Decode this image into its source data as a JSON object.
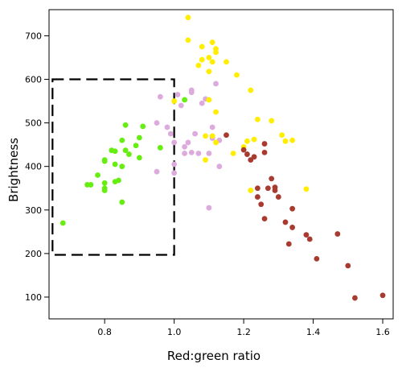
{
  "chart_data": {
    "type": "scatter",
    "title": "",
    "xlabel": "Red:green ratio",
    "ylabel": "Brightness",
    "xlim": [
      0.64,
      1.63
    ],
    "ylim": [
      50,
      760
    ],
    "x_ticks": [
      0.8,
      1.0,
      1.2,
      1.4,
      1.6
    ],
    "y_ticks": [
      100,
      200,
      300,
      400,
      500,
      600,
      700
    ],
    "x_tick_labels": [
      "0.8",
      "1.0",
      "1.2",
      "1.4",
      "1.6"
    ],
    "y_tick_labels": [
      "100",
      "200",
      "300",
      "400",
      "500",
      "600",
      "700"
    ],
    "grid": false,
    "legend": "none",
    "region": {
      "style": "dashed",
      "x": [
        0.65,
        1.0
      ],
      "y": [
        197,
        600
      ]
    },
    "series": [
      {
        "color": "#66ee11",
        "points": [
          [
            0.68,
            270
          ],
          [
            0.75,
            358
          ],
          [
            0.76,
            358
          ],
          [
            0.78,
            380
          ],
          [
            0.8,
            362
          ],
          [
            0.8,
            350
          ],
          [
            0.8,
            345
          ],
          [
            0.8,
            415
          ],
          [
            0.8,
            412
          ],
          [
            0.82,
            437
          ],
          [
            0.83,
            435
          ],
          [
            0.83,
            405
          ],
          [
            0.83,
            365
          ],
          [
            0.84,
            368
          ],
          [
            0.85,
            460
          ],
          [
            0.85,
            400
          ],
          [
            0.85,
            318
          ],
          [
            0.86,
            437
          ],
          [
            0.86,
            495
          ],
          [
            0.87,
            428
          ],
          [
            0.89,
            448
          ],
          [
            0.9,
            466
          ],
          [
            0.9,
            420
          ],
          [
            0.91,
            492
          ],
          [
            0.96,
            443
          ],
          [
            1.03,
            553
          ]
        ]
      },
      {
        "color": "#ddaadd",
        "points": [
          [
            0.95,
            500
          ],
          [
            0.95,
            388
          ],
          [
            0.96,
            560
          ],
          [
            0.98,
            490
          ],
          [
            0.99,
            475
          ],
          [
            1.0,
            455
          ],
          [
            1.0,
            405
          ],
          [
            1.0,
            385
          ],
          [
            1.01,
            565
          ],
          [
            1.02,
            540
          ],
          [
            1.03,
            445
          ],
          [
            1.03,
            430
          ],
          [
            1.04,
            455
          ],
          [
            1.05,
            432
          ],
          [
            1.05,
            570
          ],
          [
            1.05,
            575
          ],
          [
            1.06,
            475
          ],
          [
            1.07,
            430
          ],
          [
            1.08,
            545
          ],
          [
            1.09,
            555
          ],
          [
            1.1,
            305
          ],
          [
            1.1,
            430
          ],
          [
            1.11,
            465
          ],
          [
            1.11,
            490
          ],
          [
            1.12,
            590
          ],
          [
            1.13,
            460
          ],
          [
            1.13,
            400
          ]
        ]
      },
      {
        "color": "#ffee00",
        "points": [
          [
            1.0,
            550
          ],
          [
            1.04,
            742
          ],
          [
            1.04,
            690
          ],
          [
            1.07,
            632
          ],
          [
            1.08,
            645
          ],
          [
            1.08,
            675
          ],
          [
            1.09,
            415
          ],
          [
            1.09,
            470
          ],
          [
            1.1,
            650
          ],
          [
            1.1,
            618
          ],
          [
            1.1,
            553
          ],
          [
            1.11,
            685
          ],
          [
            1.11,
            640
          ],
          [
            1.11,
            470
          ],
          [
            1.12,
            662
          ],
          [
            1.12,
            670
          ],
          [
            1.12,
            455
          ],
          [
            1.12,
            525
          ],
          [
            1.15,
            640
          ],
          [
            1.17,
            430
          ],
          [
            1.18,
            610
          ],
          [
            1.2,
            445
          ],
          [
            1.21,
            458
          ],
          [
            1.22,
            575
          ],
          [
            1.22,
            345
          ],
          [
            1.23,
            462
          ],
          [
            1.24,
            508
          ],
          [
            1.28,
            505
          ],
          [
            1.31,
            472
          ],
          [
            1.32,
            458
          ],
          [
            1.34,
            460
          ],
          [
            1.38,
            348
          ]
        ]
      },
      {
        "color": "#a83a30",
        "points": [
          [
            1.15,
            472
          ],
          [
            1.2,
            438
          ],
          [
            1.21,
            428
          ],
          [
            1.22,
            415
          ],
          [
            1.23,
            422
          ],
          [
            1.24,
            350
          ],
          [
            1.24,
            330
          ],
          [
            1.25,
            313
          ],
          [
            1.26,
            452
          ],
          [
            1.26,
            432
          ],
          [
            1.26,
            280
          ],
          [
            1.27,
            350
          ],
          [
            1.28,
            372
          ],
          [
            1.29,
            352
          ],
          [
            1.29,
            345
          ],
          [
            1.3,
            330
          ],
          [
            1.32,
            272
          ],
          [
            1.33,
            222
          ],
          [
            1.34,
            260
          ],
          [
            1.34,
            303
          ],
          [
            1.38,
            243
          ],
          [
            1.39,
            233
          ],
          [
            1.41,
            188
          ],
          [
            1.47,
            245
          ],
          [
            1.5,
            172
          ],
          [
            1.52,
            98
          ],
          [
            1.6,
            104
          ]
        ]
      }
    ]
  }
}
